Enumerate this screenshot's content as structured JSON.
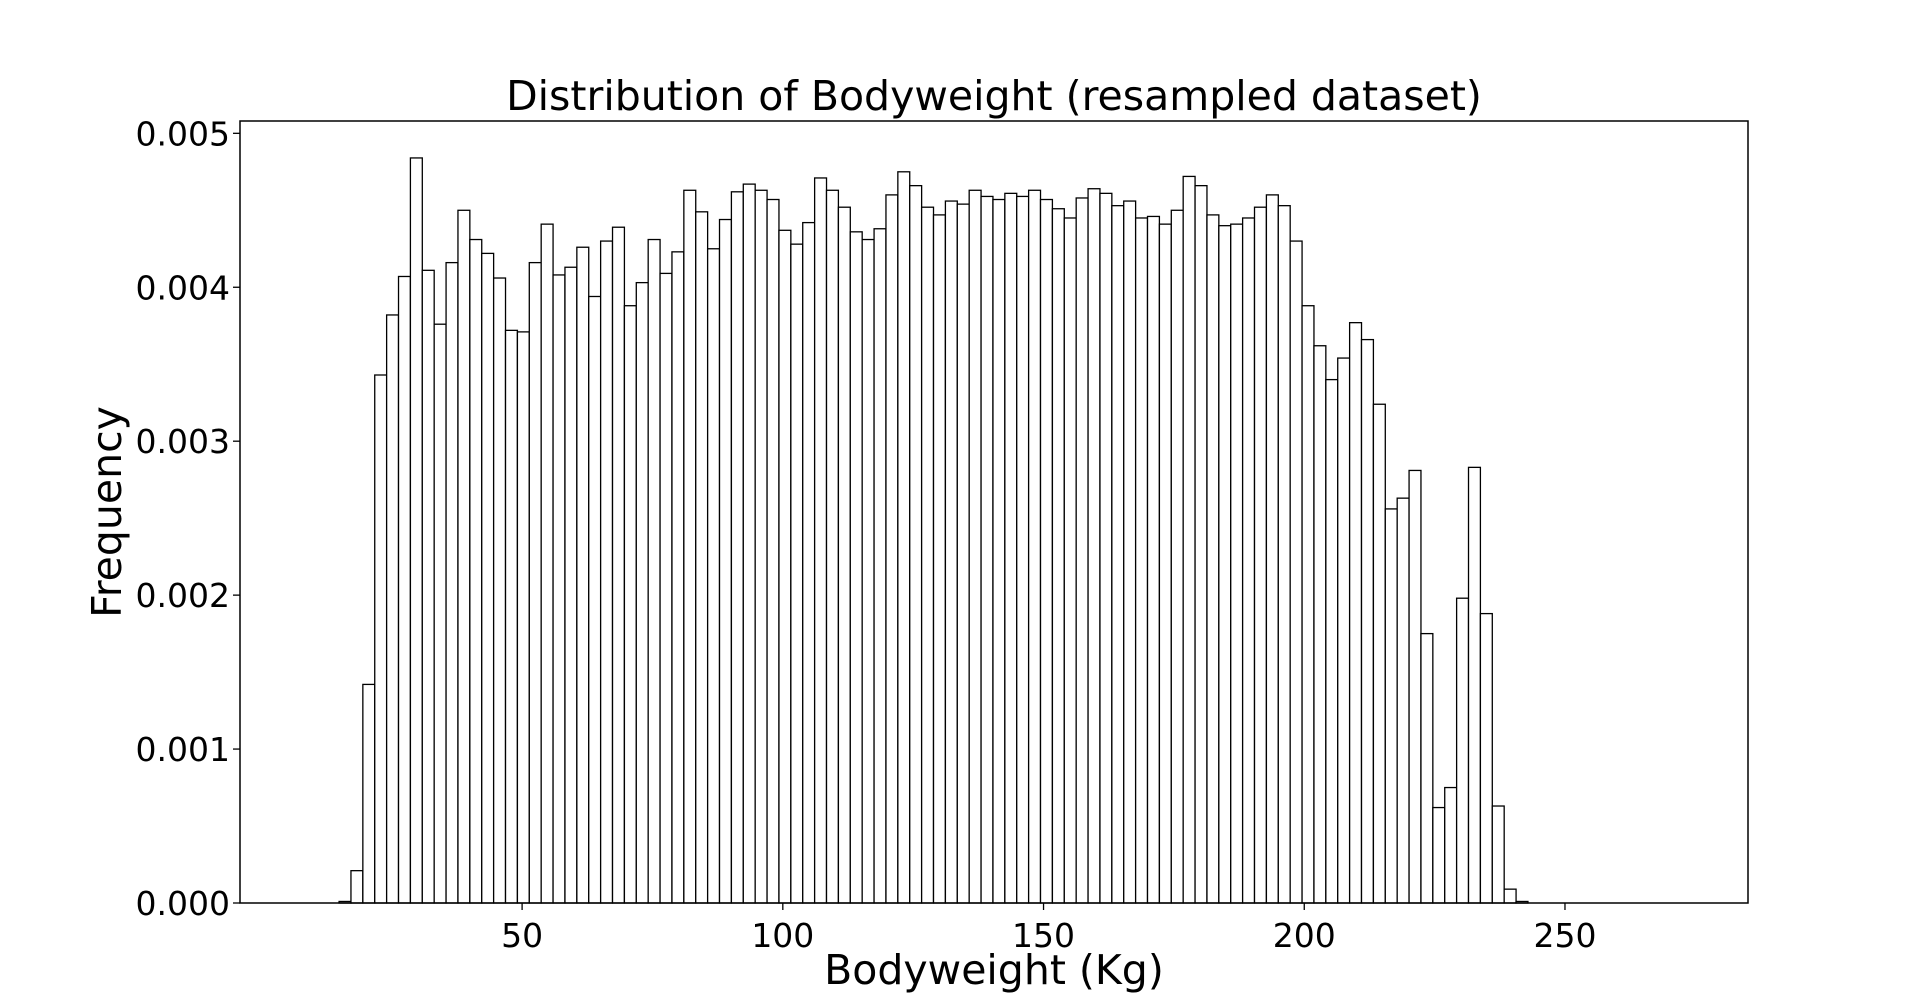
{
  "chart_data": {
    "type": "bar",
    "histogram": true,
    "title": "Distribution of Bodyweight (resampled dataset)",
    "xlabel": "Bodyweight (Kg)",
    "ylabel": "Frequency",
    "xlim": [
      -4.1,
      285.1
    ],
    "ylim": [
      0,
      0.00508
    ],
    "xticks": [
      50,
      100,
      150,
      200,
      250
    ],
    "xtick_labels": [
      "50",
      "100",
      "150",
      "200",
      "250"
    ],
    "yticks": [
      0,
      0.001,
      0.002,
      0.003,
      0.004,
      0.005
    ],
    "ytick_labels": [
      "0.000",
      "0.001",
      "0.002",
      "0.003",
      "0.004",
      "0.005"
    ],
    "grid": false,
    "colors": {
      "bar_fill": "#ffffff",
      "bar_edge": "#000000",
      "axes": "#000000",
      "background": "#ffffff"
    },
    "bin_start": 14.9,
    "bin_width": 2.28,
    "values": [
      1e-05,
      0.00021,
      0.00142,
      0.00343,
      0.00382,
      0.00407,
      0.00484,
      0.00411,
      0.00376,
      0.00416,
      0.0045,
      0.00431,
      0.00422,
      0.00406,
      0.00372,
      0.00371,
      0.00416,
      0.00441,
      0.00408,
      0.00413,
      0.00426,
      0.00394,
      0.0043,
      0.00439,
      0.00388,
      0.00403,
      0.00431,
      0.00409,
      0.00423,
      0.00463,
      0.00449,
      0.00425,
      0.00444,
      0.00462,
      0.00467,
      0.00463,
      0.00457,
      0.00437,
      0.00428,
      0.00442,
      0.00471,
      0.00463,
      0.00452,
      0.00436,
      0.00431,
      0.00438,
      0.0046,
      0.00475,
      0.00466,
      0.00452,
      0.00447,
      0.00456,
      0.00454,
      0.00463,
      0.00459,
      0.00457,
      0.00461,
      0.00459,
      0.00463,
      0.00457,
      0.00451,
      0.00445,
      0.00458,
      0.00464,
      0.00461,
      0.00453,
      0.00456,
      0.00445,
      0.00446,
      0.00441,
      0.0045,
      0.00472,
      0.00466,
      0.00447,
      0.0044,
      0.00441,
      0.00445,
      0.00452,
      0.0046,
      0.00453,
      0.0043,
      0.00388,
      0.00362,
      0.0034,
      0.00354,
      0.00377,
      0.00366,
      0.00324,
      0.00256,
      0.00263,
      0.00281,
      0.00175,
      0.00062,
      0.00075,
      0.00198,
      0.00283,
      0.00188,
      0.00063,
      9e-05,
      1e-05
    ]
  }
}
